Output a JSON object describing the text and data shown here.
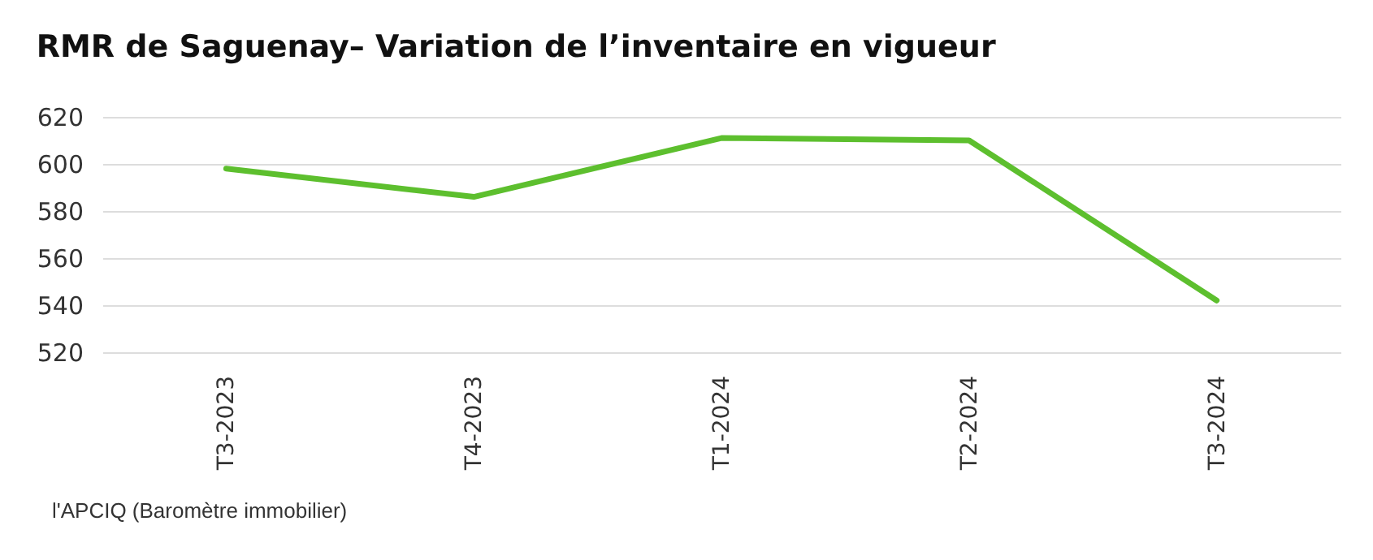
{
  "chart_data": {
    "type": "line",
    "title": "RMR de Saguenay– Variation de l’inventaire en vigueur",
    "categories": [
      "T3-2023",
      "T4-2023",
      "T1-2024",
      "T2-2024",
      "T3-2024"
    ],
    "series": [
      {
        "color": "#5dbf2e",
        "values": [
          598,
          586,
          611,
          610,
          542
        ]
      }
    ],
    "ylim": [
      520,
      620
    ],
    "yticks": [
      520,
      540,
      560,
      580,
      600,
      620
    ],
    "grid": "y",
    "legend": false,
    "marker": "none",
    "line_style": "solid",
    "annotations": [
      "l'APCIQ (Baromètre immobilier)"
    ]
  }
}
